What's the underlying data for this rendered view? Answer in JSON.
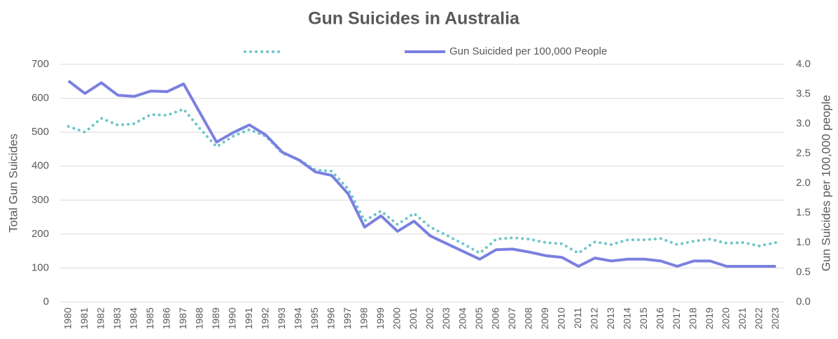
{
  "chart_data": {
    "type": "line",
    "title": "Gun Suicides in Australia",
    "y_label": "Total Gun Suicides",
    "y2_label": "Gun Suicides per 100,000 people",
    "categories": [
      "1980",
      "1981",
      "1982",
      "1983",
      "1984",
      "1985",
      "1986",
      "1987",
      "1988",
      "1989",
      "1990",
      "1991",
      "1992",
      "1993",
      "1994",
      "1995",
      "1996",
      "1997",
      "1998",
      "1999",
      "2000",
      "2001",
      "2002",
      "2003",
      "2004",
      "2005",
      "2006",
      "2007",
      "2008",
      "2009",
      "2010",
      "2011",
      "2012",
      "2013",
      "2014",
      "2015",
      "2016",
      "2017",
      "2018",
      "2019",
      "2020",
      "2021",
      "2022",
      "2023"
    ],
    "series": [
      {
        "color": "#6cc5c8",
        "dash": "dotted",
        "axis": "y",
        "values": [
          517,
          500,
          541,
          521,
          525,
          552,
          550,
          568,
          510,
          457,
          488,
          508,
          488,
          438,
          420,
          389,
          385,
          333,
          239,
          268,
          228,
          261,
          220,
          196,
          171,
          144,
          185,
          189,
          185,
          175,
          171,
          144,
          177,
          169,
          183,
          183,
          187,
          169,
          179,
          185,
          173,
          175,
          165,
          175
        ]
      },
      {
        "name": "Gun Suicided per 100,000 People",
        "color": "#7a80e0",
        "axis": "y2",
        "values": [
          3.72,
          3.51,
          3.69,
          3.48,
          3.46,
          3.55,
          3.54,
          3.67,
          3.18,
          2.69,
          2.85,
          2.98,
          2.81,
          2.52,
          2.39,
          2.19,
          2.13,
          1.82,
          1.26,
          1.45,
          1.19,
          1.36,
          1.11,
          0.98,
          0.85,
          0.72,
          0.88,
          0.89,
          0.84,
          0.78,
          0.75,
          0.6,
          0.74,
          0.69,
          0.72,
          0.72,
          0.69,
          0.6,
          0.69,
          0.69,
          0.6,
          0.6,
          0.6,
          0.6
        ]
      }
    ],
    "ylim": [
      0,
      700
    ],
    "yticks": [
      0,
      100,
      200,
      300,
      400,
      500,
      600,
      700
    ],
    "y2lim": [
      0,
      4
    ],
    "y2ticks": [
      {
        "value": 0,
        "label": "0.0"
      },
      0.5,
      {
        "value": 1,
        "label": "1.0"
      },
      1.5,
      {
        "value": 2,
        "label": "2.0"
      },
      2.5,
      {
        "value": 3,
        "label": "3.0"
      },
      3.5,
      {
        "value": 4,
        "label": "4.0"
      }
    ],
    "grid": true,
    "legend": "top"
  }
}
